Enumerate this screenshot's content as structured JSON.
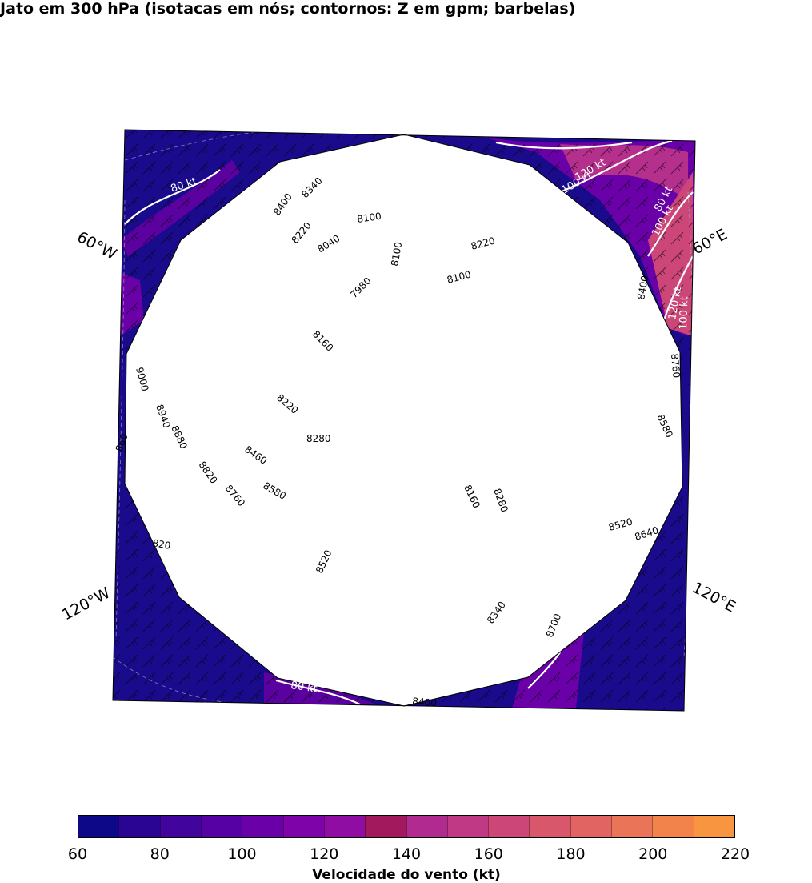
{
  "title": "Jato em 300 hPa (isotacas em nós; contornos: Z em gpm; barbelas)",
  "lon_labels": [
    "60°W",
    "60°E",
    "120°W",
    "120°E"
  ],
  "isotach_labels": [
    "80 kt",
    "80 kt",
    "100 kt",
    "120 kt",
    "80 kt",
    "100 kt",
    "120 kt",
    "100 kt"
  ],
  "height_contour_labels": [
    "8400",
    "8340",
    "8100",
    "8220",
    "8040",
    "8100",
    "8220",
    "7980",
    "8100",
    "8160",
    "9000",
    "8220",
    "8940",
    "8880",
    "8280",
    "8460",
    "8820",
    "8580",
    "8760",
    "8160",
    "8280",
    "8520",
    "8640",
    "8520",
    "8340",
    "8700",
    "8400",
    "8760",
    "8580",
    "860",
    "820",
    "8400"
  ],
  "colorbar": {
    "label": "Velocidade do vento (kt)",
    "ticks": [
      "60",
      "80",
      "100",
      "120",
      "140",
      "160",
      "180",
      "200",
      "220"
    ],
    "colors": [
      "#0d0887",
      "#2a0593",
      "#41049d",
      "#5601a4",
      "#6a00a8",
      "#7e03a8",
      "#900da4",
      "#a2195e",
      "#b12a90",
      "#bf3984",
      "#cc4778",
      "#d8576b",
      "#e16462",
      "#ea7457",
      "#f2844b",
      "#f89540"
    ]
  },
  "map_colors": {
    "base": "#1a0b8c",
    "purple": "#6a00a8",
    "magenta": "#b52f8c",
    "pink": "#cc4778"
  }
}
